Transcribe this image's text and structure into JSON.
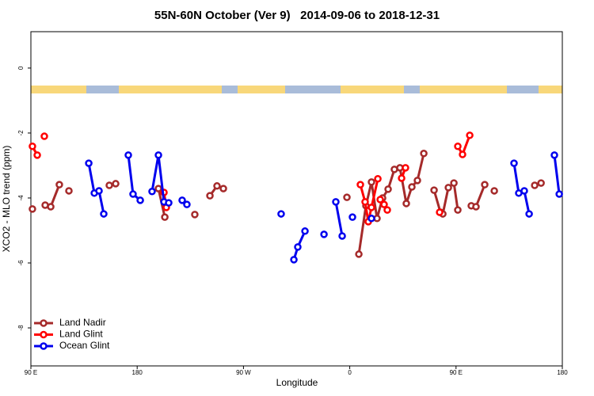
{
  "chart_data": {
    "type": "line",
    "title": "55N-60N October (Ver 9)   2014-09-06 to 2018-12-31",
    "xlabel": "Longitude",
    "ylabel": "XCO2 - MLO trend (ppm)",
    "xlim": [
      90,
      540
    ],
    "ylim": [
      -9.17,
      1.12
    ],
    "xticks": [
      {
        "value": 90,
        "label": "90 E"
      },
      180,
      {
        "value": 270,
        "label": "90 W"
      },
      {
        "value": 360,
        "label": "0"
      },
      {
        "value": 450,
        "label": "90 E"
      },
      {
        "value": 540,
        "label": "180"
      }
    ],
    "yticks": [
      0,
      -2,
      -4,
      -6,
      -8
    ],
    "legend": "bottom-left",
    "series": [
      {
        "name": "Land Nadir",
        "color": "#a52a2a",
        "x": [
          91.3,
          null,
          102.1,
          106.8,
          114.1,
          null,
          122.2,
          null,
          156.4,
          161.8,
          null,
          198.0,
          203.4,
          null,
          228.8,
          null,
          241.6,
          247.6,
          253.0,
          null,
          357.6,
          null,
          367.7,
          373.7,
          378.4,
          383.1,
          387.8,
          392.5,
          397.8,
          402.5,
          407.9,
          412.6,
          417.3,
          422.7,
          null,
          431.4,
          436.8,
          438.8,
          443.5,
          448.2,
          451.5,
          null,
          462.9,
          466.9,
          474.3,
          null,
          482.4,
          null,
          516.6,
          522.0
        ],
        "values": [
          -4.34,
          null,
          -4.22,
          -4.27,
          -3.59,
          null,
          -3.78,
          null,
          -3.61,
          -3.56,
          null,
          -3.71,
          -4.59,
          null,
          -4.51,
          null,
          -3.93,
          -3.63,
          -3.71,
          null,
          -3.98,
          null,
          -5.73,
          -4.24,
          -3.51,
          -4.63,
          -4.0,
          -3.73,
          -3.12,
          -3.07,
          -4.17,
          -3.66,
          -3.46,
          -2.63,
          null,
          -3.76,
          -4.44,
          -4.49,
          -3.68,
          -3.54,
          -4.37,
          null,
          -4.24,
          -4.27,
          -3.59,
          null,
          -3.78,
          null,
          -3.61,
          -3.54
        ]
      },
      {
        "name": "Land Glint",
        "color": "#ff0000",
        "x": [
          91.3,
          95.4,
          null,
          101.4,
          null,
          202.7,
          204.7,
          null,
          369.0,
          373.0,
          375.7,
          378.4,
          383.8,
          null,
          385.8,
          389.1,
          391.8,
          null,
          403.9,
          407.2,
          null,
          436.1,
          null,
          451.5,
          455.5,
          461.6
        ],
        "values": [
          -2.41,
          -2.68,
          null,
          -2.1,
          null,
          -3.83,
          -4.29,
          null,
          -3.59,
          -4.12,
          -4.73,
          -4.29,
          -3.41,
          null,
          -4.05,
          -4.2,
          -4.37,
          null,
          -3.39,
          -3.07,
          null,
          -4.44,
          null,
          -2.41,
          -2.66,
          -2.07
        ]
      },
      {
        "name": "Ocean Glint",
        "color": "#0000ee",
        "x": [
          139.0,
          143.7,
          147.7,
          151.7,
          null,
          172.5,
          176.5,
          182.6,
          null,
          192.6,
          198.0,
          202.7,
          206.7,
          null,
          218.1,
          222.1,
          null,
          301.9,
          null,
          312.7,
          316.0,
          322.1,
          null,
          338.2,
          null,
          348.2,
          353.6,
          null,
          362.3,
          null,
          378.4,
          null,
          499.1,
          503.1,
          507.8,
          511.9,
          null,
          533.3,
          537.4
        ],
        "values": [
          -2.93,
          -3.85,
          -3.78,
          -4.49,
          null,
          -2.68,
          -3.88,
          -4.07,
          null,
          -3.8,
          -2.68,
          -4.12,
          -4.15,
          null,
          -4.07,
          -4.2,
          null,
          -4.49,
          null,
          -5.9,
          -5.51,
          -5.02,
          null,
          -5.12,
          null,
          -4.12,
          -5.17,
          null,
          -4.59,
          null,
          -4.63,
          null,
          -2.93,
          -3.85,
          -3.78,
          -4.49,
          null,
          -2.68,
          -3.88
        ]
      }
    ]
  }
}
